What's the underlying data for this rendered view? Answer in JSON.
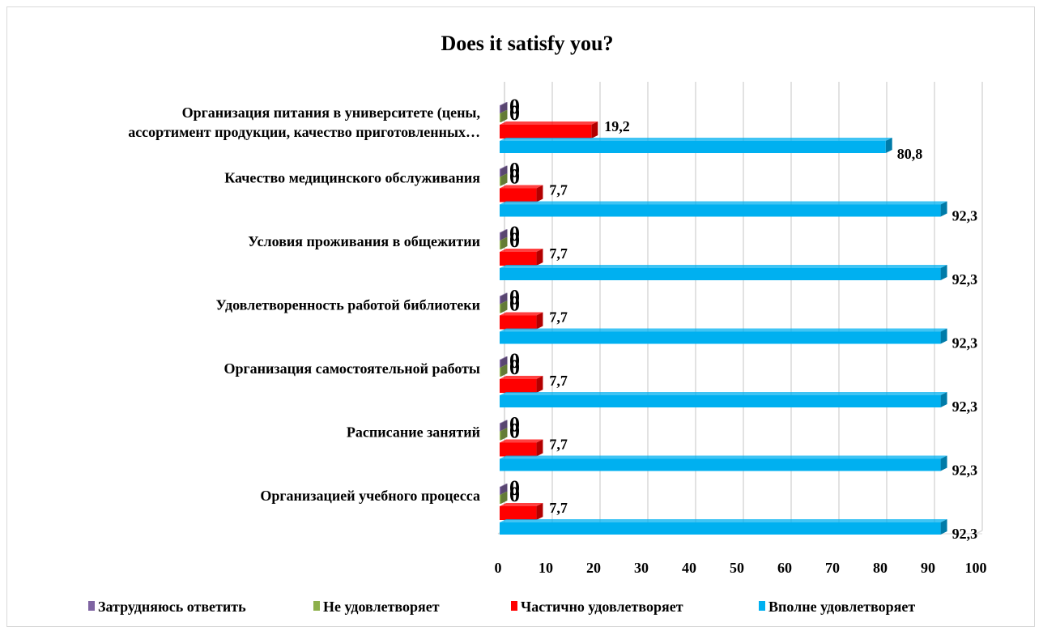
{
  "chart_data": {
    "type": "bar",
    "orientation": "horizontal",
    "title": "Does it satisfy you?",
    "categories": [
      [
        "Организация питания в университете (цены,",
        "ассортимент продукции, качество приготовленных…"
      ],
      [
        "Качество медицинского обслуживания"
      ],
      [
        "Условия проживания в общежитии"
      ],
      [
        "Удовлетворенность работой библиотеки"
      ],
      [
        "Организация самостоятельной работы"
      ],
      [
        "Расписание занятий"
      ],
      [
        "Организацией учебного процесса"
      ]
    ],
    "series": [
      {
        "name": "Затрудняюсь ответить",
        "color": "#7f64a2",
        "values": [
          0,
          0,
          0,
          0,
          0,
          0,
          0
        ]
      },
      {
        "name": "Не удовлетворяет",
        "color": "#8db04b",
        "values": [
          0,
          0,
          0,
          0,
          0,
          0,
          0
        ]
      },
      {
        "name": "Частично удовлетворяет",
        "color": "#ff0000",
        "values": [
          19.2,
          7.7,
          7.7,
          7.7,
          7.7,
          7.7,
          7.7
        ]
      },
      {
        "name": "Вполне удовлетворяет",
        "color": "#00b0f0",
        "values": [
          80.8,
          92.3,
          92.3,
          92.3,
          92.3,
          92.3,
          92.3
        ]
      }
    ],
    "value_labels": {
      "Частично удовлетворяет": [
        "19,2",
        "7,7",
        "7,7",
        "7,7",
        "7,7",
        "7,7",
        "7,7"
      ],
      "Вполне удовлетворяет": [
        "80,8",
        "92,3",
        "92,3",
        "92,3",
        "92,3",
        "92,3",
        "92,3"
      ],
      "Затрудняюсь ответить": [
        "0",
        "0",
        "0",
        "0",
        "0",
        "0",
        "0"
      ],
      "Не удовлетворяет": [
        "0",
        "0",
        "0",
        "0",
        "0",
        "0",
        "0"
      ]
    },
    "xlim": [
      0,
      100
    ],
    "xticks": [
      0,
      10,
      20,
      30,
      40,
      50,
      60,
      70,
      80,
      90,
      100
    ],
    "grid": true,
    "legend_position": "bottom"
  }
}
